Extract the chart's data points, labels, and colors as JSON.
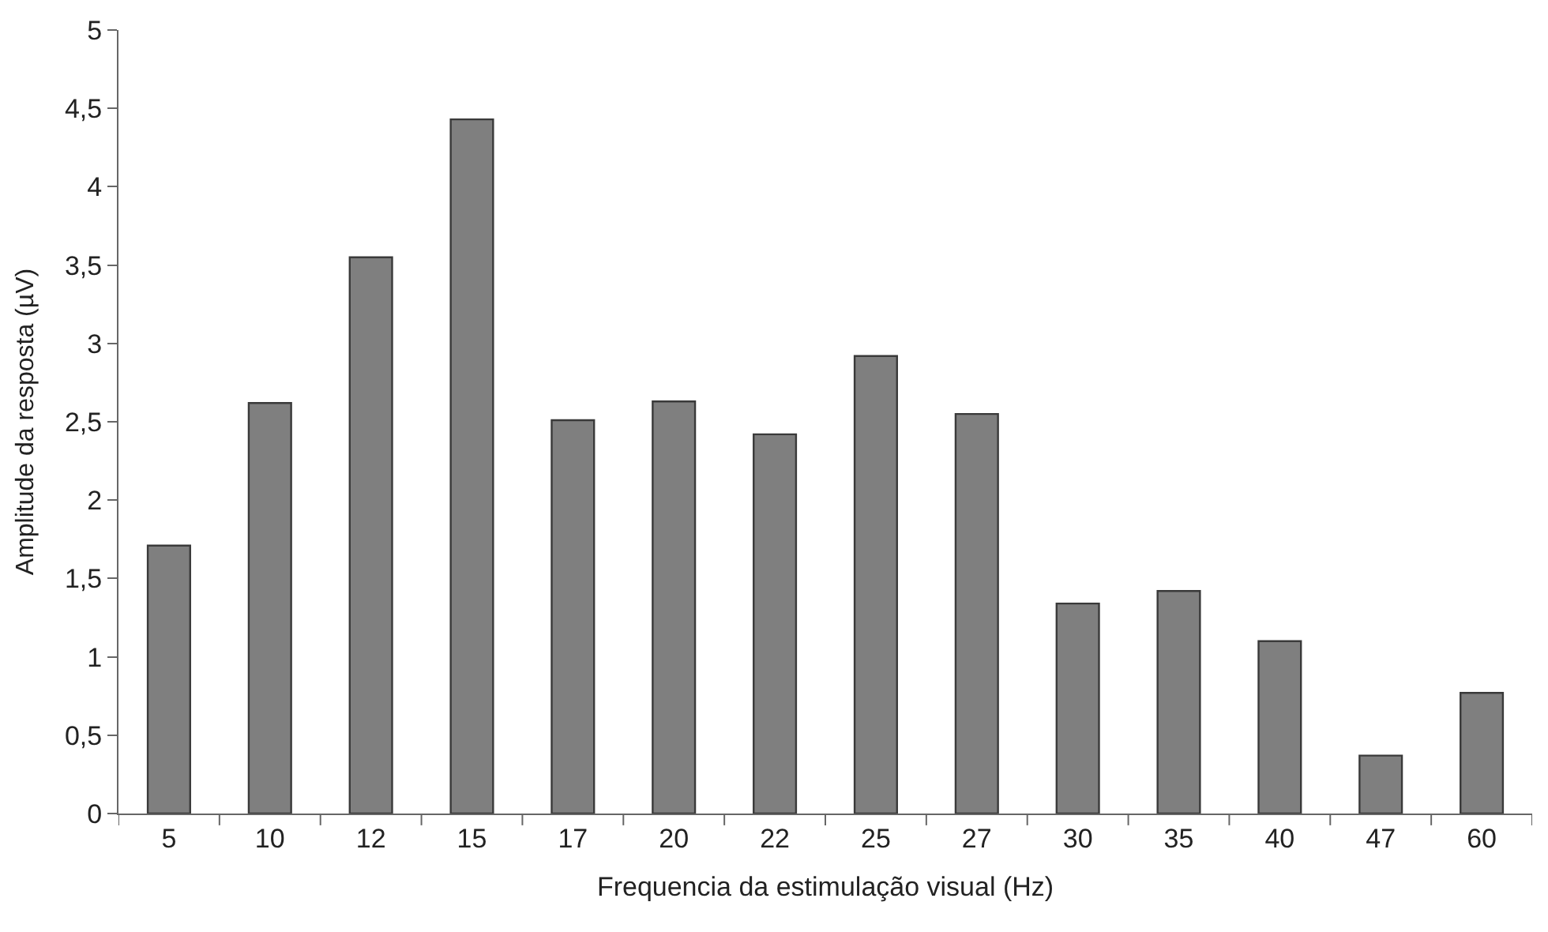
{
  "chart_data": {
    "type": "bar",
    "xlabel": "Frequencia da estimulação visual (Hz)",
    "ylabel": "Amplitude da resposta (µV)",
    "categories": [
      "5",
      "10",
      "12",
      "15",
      "17",
      "20",
      "22",
      "25",
      "27",
      "30",
      "35",
      "40",
      "47",
      "60"
    ],
    "series": [
      {
        "color": "#7f7f7f",
        "values": [
          1.71,
          2.62,
          3.55,
          4.43,
          2.51,
          2.63,
          2.42,
          2.92,
          2.55,
          1.34,
          1.42,
          1.1,
          0.37,
          0.77
        ]
      }
    ],
    "ylim": [
      0,
      5
    ],
    "yticks": [
      0,
      {
        "value": 0.5,
        "label": "0,5"
      },
      1,
      {
        "value": 1.5,
        "label": "1,5"
      },
      2,
      {
        "value": 2.5,
        "label": "2,5"
      },
      3,
      {
        "value": 3.5,
        "label": "3,5"
      },
      4,
      {
        "value": 4.5,
        "label": "4,5"
      },
      5
    ]
  }
}
